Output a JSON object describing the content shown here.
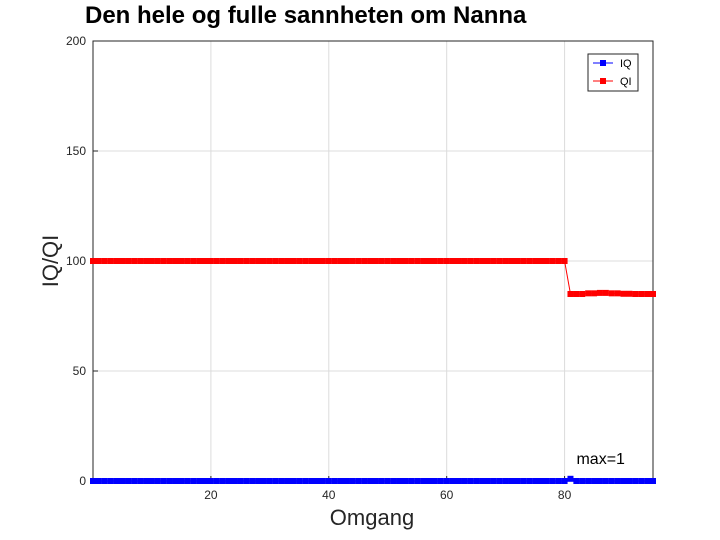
{
  "chart_data": {
    "type": "line",
    "title": "Den hele og fulle sannheten om Nanna",
    "xlabel": "Omgang",
    "ylabel": "IQ/QI",
    "xlim": [
      0,
      95
    ],
    "ylim": [
      0,
      200
    ],
    "xticks": [
      20,
      40,
      60,
      80
    ],
    "yticks": [
      0,
      50,
      100,
      150,
      200
    ],
    "grid": true,
    "legend_position": "top-right",
    "annotation": {
      "text": "max=1",
      "x": 81,
      "y": 1
    },
    "series": [
      {
        "name": "IQ",
        "color": "#0000ff",
        "marker": "square",
        "x": [
          0,
          1,
          2,
          3,
          4,
          5,
          6,
          7,
          8,
          9,
          10,
          11,
          12,
          13,
          14,
          15,
          16,
          17,
          18,
          19,
          20,
          21,
          22,
          23,
          24,
          25,
          26,
          27,
          28,
          29,
          30,
          31,
          32,
          33,
          34,
          35,
          36,
          37,
          38,
          39,
          40,
          41,
          42,
          43,
          44,
          45,
          46,
          47,
          48,
          49,
          50,
          51,
          52,
          53,
          54,
          55,
          56,
          57,
          58,
          59,
          60,
          61,
          62,
          63,
          64,
          65,
          66,
          67,
          68,
          69,
          70,
          71,
          72,
          73,
          74,
          75,
          76,
          77,
          78,
          79,
          80,
          81,
          82,
          83,
          84,
          85,
          86,
          87,
          88,
          89,
          90,
          91,
          92,
          93,
          94,
          95
        ],
        "values": [
          0,
          0,
          0,
          0,
          0,
          0,
          0,
          0,
          0,
          0,
          0,
          0,
          0,
          0,
          0,
          0,
          0,
          0,
          0,
          0,
          0,
          0,
          0,
          0,
          0,
          0,
          0,
          0,
          0,
          0,
          0,
          0,
          0,
          0,
          0,
          0,
          0,
          0,
          0,
          0,
          0,
          0,
          0,
          0,
          0,
          0,
          0,
          0,
          0,
          0,
          0,
          0,
          0,
          0,
          0,
          0,
          0,
          0,
          0,
          0,
          0,
          0,
          0,
          0,
          0,
          0,
          0,
          0,
          0,
          0,
          0,
          0,
          0,
          0,
          0,
          0,
          0,
          0,
          0,
          0,
          0,
          1,
          0,
          0,
          0,
          0,
          0,
          0,
          0,
          0,
          0,
          0,
          0,
          0,
          0,
          0
        ]
      },
      {
        "name": "QI",
        "color": "#ff0000",
        "marker": "square",
        "x": [
          0,
          1,
          2,
          3,
          4,
          5,
          6,
          7,
          8,
          9,
          10,
          11,
          12,
          13,
          14,
          15,
          16,
          17,
          18,
          19,
          20,
          21,
          22,
          23,
          24,
          25,
          26,
          27,
          28,
          29,
          30,
          31,
          32,
          33,
          34,
          35,
          36,
          37,
          38,
          39,
          40,
          41,
          42,
          43,
          44,
          45,
          46,
          47,
          48,
          49,
          50,
          51,
          52,
          53,
          54,
          55,
          56,
          57,
          58,
          59,
          60,
          61,
          62,
          63,
          64,
          65,
          66,
          67,
          68,
          69,
          70,
          71,
          72,
          73,
          74,
          75,
          76,
          77,
          78,
          79,
          80,
          81,
          82,
          83,
          84,
          85,
          86,
          87,
          88,
          89,
          90,
          91,
          92,
          93,
          94,
          95
        ],
        "values": [
          100,
          100,
          100,
          100,
          100,
          100,
          100,
          100,
          100,
          100,
          100,
          100,
          100,
          100,
          100,
          100,
          100,
          100,
          100,
          100,
          100,
          100,
          100,
          100,
          100,
          100,
          100,
          100,
          100,
          100,
          100,
          100,
          100,
          100,
          100,
          100,
          100,
          100,
          100,
          100,
          100,
          100,
          100,
          100,
          100,
          100,
          100,
          100,
          100,
          100,
          100,
          100,
          100,
          100,
          100,
          100,
          100,
          100,
          100,
          100,
          100,
          100,
          100,
          100,
          100,
          100,
          100,
          100,
          100,
          100,
          100,
          100,
          100,
          100,
          100,
          100,
          100,
          100,
          100,
          100,
          100,
          85,
          85,
          85,
          85.3,
          85.3,
          85.5,
          85.5,
          85.3,
          85.3,
          85.1,
          85.1,
          85,
          85,
          85,
          85
        ]
      }
    ]
  }
}
